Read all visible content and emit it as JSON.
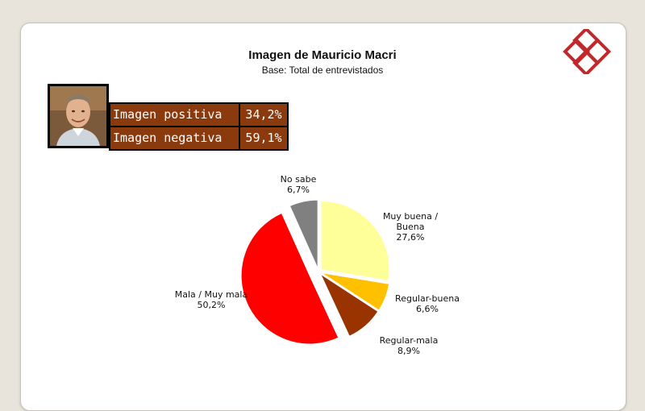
{
  "header": {
    "title": "Imagen de Mauricio Macri",
    "subtitle": "Base: Total de entrevistados"
  },
  "summary": {
    "rows": [
      {
        "label": "Imagen positiva",
        "value": "34,2%"
      },
      {
        "label": "Imagen negativa",
        "value": "59,1%"
      }
    ]
  },
  "chart_data": {
    "type": "pie",
    "slices": [
      {
        "name": "Muy buena / Buena",
        "label_lines": [
          "Muy buena /",
          "Buena"
        ],
        "value": 27.6,
        "value_label": "27,6%",
        "color": "#ffff99",
        "exploded": false
      },
      {
        "name": "Regular-buena",
        "label_lines": [
          "Regular-buena"
        ],
        "value": 6.6,
        "value_label": "6,6%",
        "color": "#ffc000",
        "exploded": false
      },
      {
        "name": "Regular-mala",
        "label_lines": [
          "Regular-mala"
        ],
        "value": 8.9,
        "value_label": "8,9%",
        "color": "#993300",
        "exploded": false
      },
      {
        "name": "Mala / Muy mala",
        "label_lines": [
          "Mala / Muy mala"
        ],
        "value": 50.2,
        "value_label": "50,2%",
        "color": "#ff0000",
        "exploded": true
      },
      {
        "name": "No sabe",
        "label_lines": [
          "No sabe"
        ],
        "value": 6.7,
        "value_label": "6,7%",
        "color": "#808080",
        "exploded": false
      }
    ]
  },
  "colors": {
    "table_background": "#8b3a0e",
    "logo": "#c0282a"
  }
}
